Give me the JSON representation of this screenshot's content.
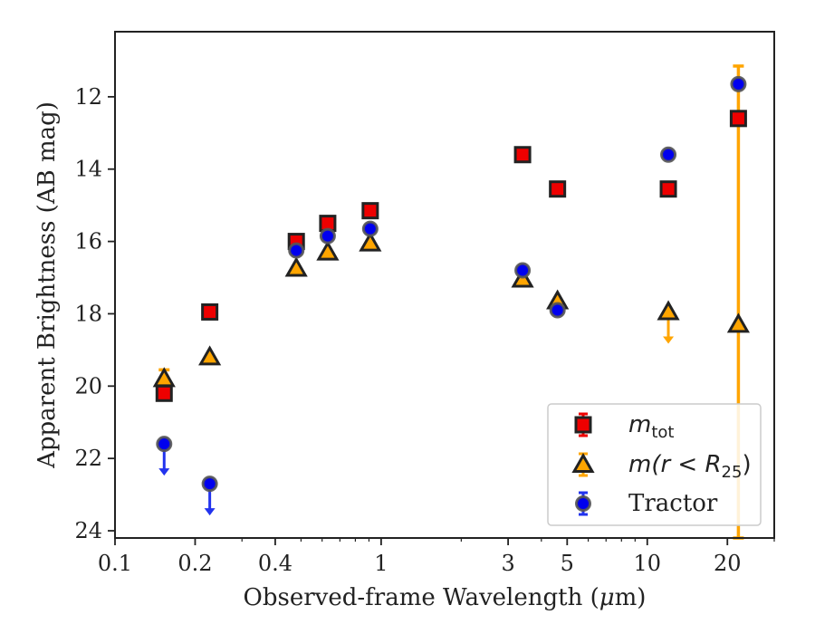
{
  "chart_data": {
    "type": "scatter",
    "xlabel_prefix": "Observed-frame Wavelength (",
    "xlabel_mu": "μ",
    "xlabel_suffix": "m)",
    "ylabel": "Apparent Brightness (AB mag)",
    "xscale": "log",
    "xlim": [
      0.1,
      30
    ],
    "ylim": [
      24.2,
      10.2
    ],
    "y_inverted": true,
    "xticks": [
      {
        "value": 0.1,
        "label": "0.1"
      },
      {
        "value": 0.2,
        "label": "0.2"
      },
      {
        "value": 0.4,
        "label": "0.4"
      },
      {
        "value": 1,
        "label": "1"
      },
      {
        "value": 3,
        "label": "3"
      },
      {
        "value": 5,
        "label": "5"
      },
      {
        "value": 10,
        "label": "10"
      },
      {
        "value": 20,
        "label": "20"
      }
    ],
    "yticks": [
      {
        "value": 12,
        "label": "12"
      },
      {
        "value": 14,
        "label": "14"
      },
      {
        "value": 16,
        "label": "16"
      },
      {
        "value": 18,
        "label": "18"
      },
      {
        "value": 20,
        "label": "20"
      },
      {
        "value": 22,
        "label": "22"
      },
      {
        "value": 24,
        "label": "24"
      }
    ],
    "legend_position": "lower-right",
    "series": [
      {
        "key": "mtot",
        "legend_main": "m",
        "legend_sub": "tot",
        "marker": "square",
        "face": "#ee0000",
        "errcolor": "#ee0000",
        "points": [
          {
            "x": 0.153,
            "y": 20.2
          },
          {
            "x": 0.227,
            "y": 17.95
          },
          {
            "x": 0.48,
            "y": 16.0
          },
          {
            "x": 0.63,
            "y": 15.5
          },
          {
            "x": 0.91,
            "y": 15.15
          },
          {
            "x": 3.4,
            "y": 13.6
          },
          {
            "x": 4.6,
            "y": 14.55
          },
          {
            "x": 12.0,
            "y": 14.55
          },
          {
            "x": 22.0,
            "y": 12.6
          }
        ]
      },
      {
        "key": "mr25",
        "legend_main": "m(r < R",
        "legend_sub": "25",
        "legend_tail": ")",
        "marker": "triangle",
        "face": "#ffa500",
        "errcolor": "#ffa500",
        "points": [
          {
            "x": 0.153,
            "y": 19.8,
            "yerr_low": 19.55,
            "yerr_high": 20.05
          },
          {
            "x": 0.227,
            "y": 19.2
          },
          {
            "x": 0.48,
            "y": 16.75
          },
          {
            "x": 0.63,
            "y": 16.3
          },
          {
            "x": 0.91,
            "y": 16.05
          },
          {
            "x": 3.4,
            "y": 17.05
          },
          {
            "x": 4.6,
            "y": 17.65
          },
          {
            "x": 12.0,
            "y": 17.95,
            "upper_limit": true
          },
          {
            "x": 22.0,
            "y": 18.3,
            "yerr_low": 11.15,
            "yerr_high": 24.2
          }
        ]
      },
      {
        "key": "tractor",
        "legend_main": "Tractor",
        "marker": "circle",
        "face": "#0000ee",
        "errcolor": "#2233ee",
        "points": [
          {
            "x": 0.153,
            "y": 21.6,
            "upper_limit": true
          },
          {
            "x": 0.227,
            "y": 22.7,
            "upper_limit": true
          },
          {
            "x": 0.48,
            "y": 16.25
          },
          {
            "x": 0.63,
            "y": 15.85
          },
          {
            "x": 0.91,
            "y": 15.65
          },
          {
            "x": 3.4,
            "y": 16.8
          },
          {
            "x": 4.6,
            "y": 17.9
          },
          {
            "x": 12.0,
            "y": 13.6
          },
          {
            "x": 22.0,
            "y": 11.65
          }
        ]
      }
    ]
  }
}
